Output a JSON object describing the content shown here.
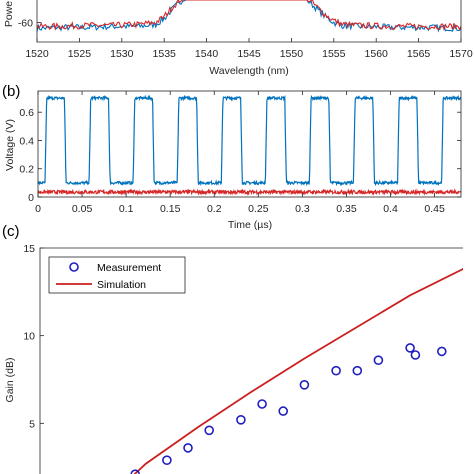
{
  "chart_data": [
    {
      "panel_label": "",
      "type": "line",
      "xlabel": "Wavelength (nm)",
      "ylabel": "Powe",
      "xlim": [
        1520,
        1570
      ],
      "ylim": [
        -70,
        -28
      ],
      "xticks": [
        "1520",
        "1525",
        "1530",
        "1535",
        "1540",
        "1545",
        "1550",
        "1555",
        "1560",
        "1565",
        "1570"
      ],
      "yticks": [
        "-40",
        "-60"
      ],
      "ytick_values": [
        -40,
        -60
      ],
      "series": [
        {
          "color": "#0072bd",
          "points": [
            [
              1520,
              -63
            ],
            [
              1523,
              -62.5
            ],
            [
              1526,
              -62.5
            ],
            [
              1529,
              -62
            ],
            [
              1532,
              -62
            ],
            [
              1534,
              -61
            ],
            [
              1535,
              -58
            ],
            [
              1536,
              -53
            ],
            [
              1537,
              -49
            ],
            [
              1538,
              -45
            ],
            [
              1539,
              -42
            ],
            [
              1540,
              -40.5
            ],
            [
              1540.9,
              -40
            ],
            [
              1541.1,
              -20
            ],
            [
              1541.6,
              -20
            ],
            [
              1541.8,
              -40
            ],
            [
              1542.5,
              -37
            ],
            [
              1543.5,
              -35
            ],
            [
              1544.5,
              -34
            ],
            [
              1545.5,
              -34
            ],
            [
              1546.5,
              -35
            ],
            [
              1547.5,
              -37
            ],
            [
              1548.3,
              -39
            ],
            [
              1548.5,
              -20
            ],
            [
              1549.0,
              -20
            ],
            [
              1549.2,
              -40.5
            ],
            [
              1550,
              -42
            ],
            [
              1551,
              -45
            ],
            [
              1552,
              -49
            ],
            [
              1553,
              -53
            ],
            [
              1554,
              -57
            ],
            [
              1555,
              -60
            ],
            [
              1556,
              -61.5
            ],
            [
              1558,
              -62
            ],
            [
              1562,
              -62.5
            ],
            [
              1566,
              -62.5
            ],
            [
              1570,
              -63
            ]
          ]
        },
        {
          "color": "#d62728",
          "points": [
            [
              1520,
              -62
            ],
            [
              1523,
              -62
            ],
            [
              1526,
              -61.5
            ],
            [
              1529,
              -61.5
            ],
            [
              1532,
              -61
            ],
            [
              1534,
              -60
            ],
            [
              1535,
              -57
            ],
            [
              1536,
              -52
            ],
            [
              1537,
              -48
            ],
            [
              1538,
              -44.5
            ],
            [
              1539,
              -42
            ],
            [
              1540,
              -40
            ],
            [
              1541,
              -38.5
            ],
            [
              1542,
              -37
            ],
            [
              1543,
              -35.5
            ],
            [
              1544,
              -34.5
            ],
            [
              1545,
              -33.5
            ],
            [
              1546,
              -34
            ],
            [
              1547,
              -35.5
            ],
            [
              1548,
              -37
            ],
            [
              1549,
              -39
            ],
            [
              1550,
              -41
            ],
            [
              1551,
              -44
            ],
            [
              1552,
              -48
            ],
            [
              1553,
              -52
            ],
            [
              1554,
              -56
            ],
            [
              1555,
              -59
            ],
            [
              1556,
              -61
            ],
            [
              1558,
              -61.5
            ],
            [
              1562,
              -62
            ],
            [
              1566,
              -62
            ],
            [
              1570,
              -62
            ]
          ]
        }
      ]
    },
    {
      "panel_label": "(b)",
      "type": "line",
      "xlabel": "Time (µs)",
      "ylabel": "Voltage (V)",
      "xlim": [
        0,
        0.48
      ],
      "ylim": [
        0,
        0.75
      ],
      "xticks": [
        "0",
        "0.05",
        "0.1",
        "0.15",
        "0.2",
        "0.25",
        "0.3",
        "0.35",
        "0.4",
        "0.45"
      ],
      "xtick_values": [
        0,
        0.05,
        0.1,
        0.15,
        0.2,
        0.25,
        0.3,
        0.35,
        0.4,
        0.45
      ],
      "yticks": [
        "0",
        "0.2",
        "0.4",
        "0.6"
      ],
      "ytick_values": [
        0,
        0.2,
        0.4,
        0.6
      ],
      "series": [
        {
          "color": "#0072bd",
          "square_wave": {
            "period": 0.05,
            "start": 0.008,
            "high_duration": 0.022,
            "high": 0.7,
            "low": 0.1
          }
        },
        {
          "color": "#d62728",
          "constant": 0.035
        }
      ]
    },
    {
      "panel_label": "(c)",
      "type": "scatter",
      "xlabel": "",
      "ylabel": "Gain (dB)",
      "xlim": [
        0,
        40
      ],
      "ylim": [
        0,
        15
      ],
      "yticks": [
        "5",
        "10",
        "15"
      ],
      "ytick_values": [
        5,
        10,
        15
      ],
      "legend": {
        "position": "top-left",
        "entries": [
          "Measurement",
          "Simulation"
        ]
      },
      "series": [
        {
          "name": "Measurement",
          "type": "scatter",
          "color": "#1f1fbf",
          "x": [
            9,
            12,
            14,
            16,
            19,
            21,
            23,
            25,
            28,
            30,
            32,
            35,
            35.5,
            38,
            41
          ],
          "y": [
            2.1,
            2.9,
            3.6,
            4.6,
            5.2,
            6.1,
            5.7,
            7.2,
            8.0,
            8.0,
            8.6,
            9.3,
            8.9,
            9.1,
            10.7
          ]
        },
        {
          "name": "Simulation",
          "type": "line",
          "color": "#cc1f1f",
          "x": [
            7,
            10,
            15,
            20,
            25,
            30,
            35,
            40,
            45
          ],
          "y": [
            1.0,
            2.7,
            4.8,
            6.8,
            8.7,
            10.5,
            12.3,
            13.8,
            15.3
          ]
        }
      ]
    }
  ]
}
